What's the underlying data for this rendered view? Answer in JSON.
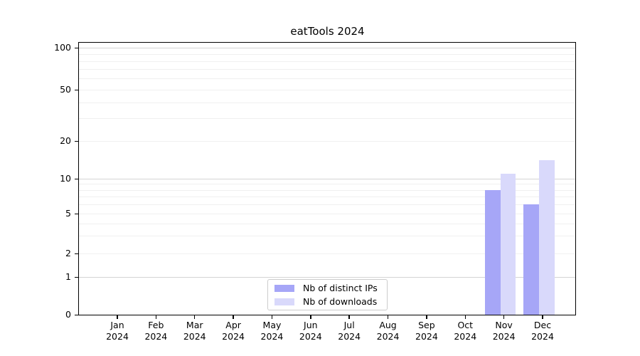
{
  "chart_data": {
    "type": "bar",
    "title": "eatTools 2024",
    "categories": [
      "Jan",
      "Feb",
      "Mar",
      "Apr",
      "May",
      "Jun",
      "Jul",
      "Aug",
      "Sep",
      "Oct",
      "Nov",
      "Dec"
    ],
    "category_year": "2024",
    "series": [
      {
        "name": "Nb of distinct IPs",
        "color": "#a6a6f7",
        "values": [
          0,
          0,
          0,
          0,
          0,
          0,
          0,
          0,
          0,
          0,
          8,
          6
        ]
      },
      {
        "name": "Nb of downloads",
        "color": "#d9d9fb",
        "values": [
          0,
          0,
          0,
          0,
          0,
          0,
          0,
          0,
          0,
          0,
          11,
          14
        ]
      }
    ],
    "yscale": "log1p",
    "ylim": [
      0,
      110
    ],
    "y_ticks": [
      0,
      1,
      2,
      5,
      10,
      20,
      50,
      100
    ],
    "y_major_gridlines": [
      1,
      10,
      100
    ],
    "y_minor_gridlines": [
      2,
      3,
      4,
      5,
      6,
      7,
      8,
      9,
      20,
      30,
      40,
      50,
      60,
      70,
      80,
      90
    ],
    "grid": "both",
    "legend_position": "lower center",
    "xlabel": "",
    "ylabel": ""
  },
  "colors": {
    "major_grid": "#d4d4d4",
    "minor_grid": "#f0f0f0",
    "spine": "#000000",
    "legend_border": "#cccccc",
    "text": "#000000"
  }
}
